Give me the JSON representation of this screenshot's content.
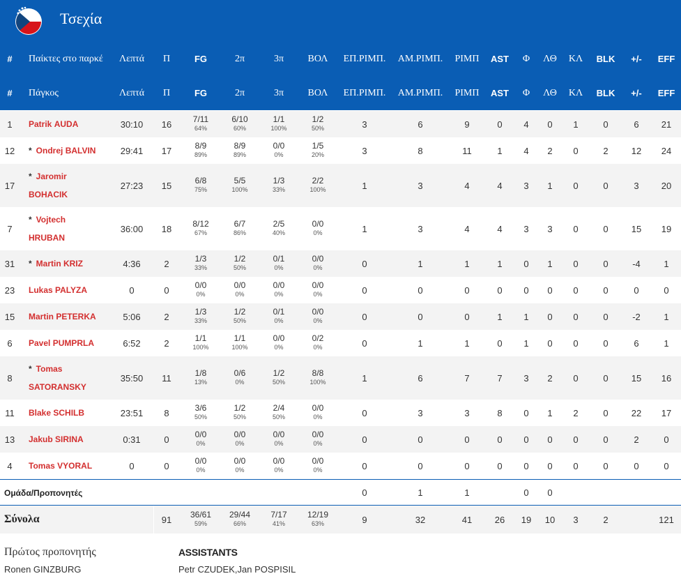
{
  "team": {
    "name": "Τσεχία",
    "flag_icon": "czech-flag-icon"
  },
  "colors": {
    "header_bg": "#0a5db4",
    "player_name": "#d32f2f",
    "row_alt": "#f3f3f3"
  },
  "header": {
    "row1": [
      "#",
      "Παίκτες στο παρκέ",
      "Λεπτά",
      "Π",
      "FG",
      "2π",
      "3π",
      "ΒΟΛ",
      "ΕΠ.ΡΙΜΠ.",
      "ΑΜ.ΡΙΜΠ.",
      "ΡΙΜΠ",
      "AST",
      "Φ",
      "ΛΘ",
      "ΚΛ",
      "BLK",
      "+/-",
      "EFF"
    ],
    "row2": [
      "#",
      "Πάγκος",
      "Λεπτά",
      "Π",
      "FG",
      "2π",
      "3π",
      "ΒΟΛ",
      "ΕΠ.ΡΙΜΠ.",
      "ΑΜ.ΡΙΜΠ.",
      "ΡΙΜΠ",
      "AST",
      "Φ",
      "ΛΘ",
      "ΚΛ",
      "BLK",
      "+/-",
      "EFF"
    ]
  },
  "players": [
    {
      "num": "1",
      "star": "",
      "first": "Patrik",
      "last": "AUDA",
      "min": "30:10",
      "pts": "16",
      "fg": "7/11",
      "fg_pct": "64%",
      "p2": "6/10",
      "p2_pct": "60%",
      "p3": "1/1",
      "p3_pct": "100%",
      "ft": "1/2",
      "ft_pct": "50%",
      "oreb": "3",
      "dreb": "6",
      "reb": "9",
      "ast": "0",
      "pf": "4",
      "to": "0",
      "stl": "1",
      "blk": "0",
      "pm": "6",
      "eff": "21"
    },
    {
      "num": "12",
      "star": "*",
      "first": "Ondrej",
      "last": "BALVIN",
      "min": "29:41",
      "pts": "17",
      "fg": "8/9",
      "fg_pct": "89%",
      "p2": "8/9",
      "p2_pct": "89%",
      "p3": "0/0",
      "p3_pct": "0%",
      "ft": "1/5",
      "ft_pct": "20%",
      "oreb": "3",
      "dreb": "8",
      "reb": "11",
      "ast": "1",
      "pf": "4",
      "to": "2",
      "stl": "0",
      "blk": "2",
      "pm": "12",
      "eff": "24"
    },
    {
      "num": "17",
      "star": "*",
      "first": "Jaromir",
      "last": "BOHACIK",
      "min": "27:23",
      "pts": "15",
      "fg": "6/8",
      "fg_pct": "75%",
      "p2": "5/5",
      "p2_pct": "100%",
      "p3": "1/3",
      "p3_pct": "33%",
      "ft": "2/2",
      "ft_pct": "100%",
      "oreb": "1",
      "dreb": "3",
      "reb": "4",
      "ast": "4",
      "pf": "3",
      "to": "1",
      "stl": "0",
      "blk": "0",
      "pm": "3",
      "eff": "20"
    },
    {
      "num": "7",
      "star": "*",
      "first": "Vojtech",
      "last": "HRUBAN",
      "min": "36:00",
      "pts": "18",
      "fg": "8/12",
      "fg_pct": "67%",
      "p2": "6/7",
      "p2_pct": "86%",
      "p3": "2/5",
      "p3_pct": "40%",
      "ft": "0/0",
      "ft_pct": "0%",
      "oreb": "1",
      "dreb": "3",
      "reb": "4",
      "ast": "4",
      "pf": "3",
      "to": "3",
      "stl": "0",
      "blk": "0",
      "pm": "15",
      "eff": "19"
    },
    {
      "num": "31",
      "star": "*",
      "first": "Martin",
      "last": "KRIZ",
      "min": "4:36",
      "pts": "2",
      "fg": "1/3",
      "fg_pct": "33%",
      "p2": "1/2",
      "p2_pct": "50%",
      "p3": "0/1",
      "p3_pct": "0%",
      "ft": "0/0",
      "ft_pct": "0%",
      "oreb": "0",
      "dreb": "1",
      "reb": "1",
      "ast": "1",
      "pf": "0",
      "to": "1",
      "stl": "0",
      "blk": "0",
      "pm": "-4",
      "eff": "1"
    },
    {
      "num": "23",
      "star": "",
      "first": "Lukas",
      "last": "PALYZA",
      "min": "0",
      "pts": "0",
      "fg": "0/0",
      "fg_pct": "0%",
      "p2": "0/0",
      "p2_pct": "0%",
      "p3": "0/0",
      "p3_pct": "0%",
      "ft": "0/0",
      "ft_pct": "0%",
      "oreb": "0",
      "dreb": "0",
      "reb": "0",
      "ast": "0",
      "pf": "0",
      "to": "0",
      "stl": "0",
      "blk": "0",
      "pm": "0",
      "eff": "0"
    },
    {
      "num": "15",
      "star": "",
      "first": "Martin",
      "last": "PETERKA",
      "min": "5:06",
      "pts": "2",
      "fg": "1/3",
      "fg_pct": "33%",
      "p2": "1/2",
      "p2_pct": "50%",
      "p3": "0/1",
      "p3_pct": "0%",
      "ft": "0/0",
      "ft_pct": "0%",
      "oreb": "0",
      "dreb": "0",
      "reb": "0",
      "ast": "1",
      "pf": "1",
      "to": "0",
      "stl": "0",
      "blk": "0",
      "pm": "-2",
      "eff": "1"
    },
    {
      "num": "6",
      "star": "",
      "first": "Pavel",
      "last": "PUMPRLA",
      "min": "6:52",
      "pts": "2",
      "fg": "1/1",
      "fg_pct": "100%",
      "p2": "1/1",
      "p2_pct": "100%",
      "p3": "0/0",
      "p3_pct": "0%",
      "ft": "0/2",
      "ft_pct": "0%",
      "oreb": "0",
      "dreb": "1",
      "reb": "1",
      "ast": "0",
      "pf": "1",
      "to": "0",
      "stl": "0",
      "blk": "0",
      "pm": "6",
      "eff": "1"
    },
    {
      "num": "8",
      "star": "*",
      "first": "Tomas",
      "last": "SATORANSKY",
      "min": "35:50",
      "pts": "11",
      "fg": "1/8",
      "fg_pct": "13%",
      "p2": "0/6",
      "p2_pct": "0%",
      "p3": "1/2",
      "p3_pct": "50%",
      "ft": "8/8",
      "ft_pct": "100%",
      "oreb": "1",
      "dreb": "6",
      "reb": "7",
      "ast": "7",
      "pf": "3",
      "to": "2",
      "stl": "0",
      "blk": "0",
      "pm": "15",
      "eff": "16"
    },
    {
      "num": "11",
      "star": "",
      "first": "Blake",
      "last": "SCHILB",
      "min": "23:51",
      "pts": "8",
      "fg": "3/6",
      "fg_pct": "50%",
      "p2": "1/2",
      "p2_pct": "50%",
      "p3": "2/4",
      "p3_pct": "50%",
      "ft": "0/0",
      "ft_pct": "0%",
      "oreb": "0",
      "dreb": "3",
      "reb": "3",
      "ast": "8",
      "pf": "0",
      "to": "1",
      "stl": "2",
      "blk": "0",
      "pm": "22",
      "eff": "17"
    },
    {
      "num": "13",
      "star": "",
      "first": "Jakub",
      "last": "SIRINA",
      "min": "0:31",
      "pts": "0",
      "fg": "0/0",
      "fg_pct": "0%",
      "p2": "0/0",
      "p2_pct": "0%",
      "p3": "0/0",
      "p3_pct": "0%",
      "ft": "0/0",
      "ft_pct": "0%",
      "oreb": "0",
      "dreb": "0",
      "reb": "0",
      "ast": "0",
      "pf": "0",
      "to": "0",
      "stl": "0",
      "blk": "0",
      "pm": "2",
      "eff": "0"
    },
    {
      "num": "4",
      "star": "",
      "first": "Tomas",
      "last": "VYORAL",
      "min": "0",
      "pts": "0",
      "fg": "0/0",
      "fg_pct": "0%",
      "p2": "0/0",
      "p2_pct": "0%",
      "p3": "0/0",
      "p3_pct": "0%",
      "ft": "0/0",
      "ft_pct": "0%",
      "oreb": "0",
      "dreb": "0",
      "reb": "0",
      "ast": "0",
      "pf": "0",
      "to": "0",
      "stl": "0",
      "blk": "0",
      "pm": "0",
      "eff": "0"
    }
  ],
  "team_row": {
    "label": "Ομάδα/Προπονητές",
    "oreb": "0",
    "dreb": "1",
    "reb": "1",
    "pf": "0",
    "to": "0"
  },
  "totals": {
    "label": "Σύνολα",
    "pts": "91",
    "fg": "36/61",
    "fg_pct": "59%",
    "p2": "29/44",
    "p2_pct": "66%",
    "p3": "7/17",
    "p3_pct": "41%",
    "ft": "12/19",
    "ft_pct": "63%",
    "oreb": "9",
    "dreb": "32",
    "reb": "41",
    "ast": "26",
    "pf": "19",
    "to": "10",
    "stl": "3",
    "blk": "2",
    "eff": "121"
  },
  "coaches": {
    "head_title": "Πρώτος προπονητής",
    "head_name": "Ronen GINZBURG",
    "assistants_title": "ASSISTANTS",
    "assistants_names": "Petr CZUDEK,Jan POSPISIL"
  }
}
